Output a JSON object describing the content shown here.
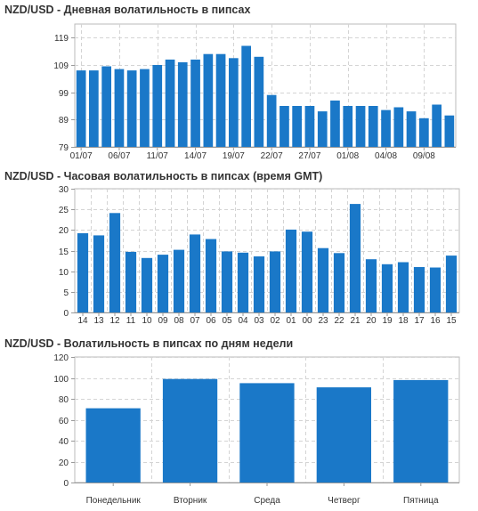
{
  "colors": {
    "bar": "#1a78c8",
    "grid": "#d4d4d4",
    "axis": "#999999",
    "text": "#333333"
  },
  "chart_data": [
    {
      "id": "daily",
      "type": "bar",
      "title": "NZD/USD - Дневная волатильность в пипсах",
      "ylim": [
        79,
        124
      ],
      "yticks": [
        79,
        89,
        99,
        109,
        119
      ],
      "grid": true,
      "x_tick_labels": [
        {
          "index": 0,
          "label": "01/07"
        },
        {
          "index": 3,
          "label": "06/07"
        },
        {
          "index": 6,
          "label": "11/07"
        },
        {
          "index": 9,
          "label": "14/07"
        },
        {
          "index": 12,
          "label": "19/07"
        },
        {
          "index": 15,
          "label": "22/07"
        },
        {
          "index": 18,
          "label": "27/07"
        },
        {
          "index": 21,
          "label": "01/08"
        },
        {
          "index": 24,
          "label": "04/08"
        },
        {
          "index": 27,
          "label": "09/08"
        }
      ],
      "values": [
        107,
        107,
        108.5,
        107.5,
        107,
        107.5,
        109,
        111,
        110,
        111,
        113,
        113,
        111.5,
        116,
        112,
        98,
        94,
        94,
        94,
        92,
        96,
        94,
        94,
        94,
        92.5,
        93.5,
        92,
        89.5,
        94.5,
        90.5
      ]
    },
    {
      "id": "hourly",
      "type": "bar",
      "title": "NZD/USD - Часовая волатильность в пипсах (время GMT)",
      "ylim": [
        0,
        30
      ],
      "yticks": [
        0,
        5,
        10,
        15,
        20,
        25,
        30
      ],
      "grid": true,
      "categories": [
        "14",
        "13",
        "12",
        "11",
        "10",
        "09",
        "08",
        "07",
        "06",
        "05",
        "04",
        "03",
        "02",
        "01",
        "00",
        "23",
        "22",
        "21",
        "20",
        "19",
        "18",
        "17",
        "16",
        "15"
      ],
      "values": [
        19.2,
        18.7,
        24.1,
        14.7,
        13.2,
        14.0,
        15.2,
        18.9,
        17.8,
        14.8,
        14.5,
        13.6,
        14.8,
        20.1,
        19.6,
        15.6,
        14.4,
        26.3,
        12.9,
        11.7,
        12.2,
        11.0,
        10.9,
        13.8
      ]
    },
    {
      "id": "weekday",
      "type": "bar",
      "title": "NZD/USD - Волатильность в пипсах по дням недели",
      "ylim": [
        0,
        120
      ],
      "yticks": [
        0,
        20,
        40,
        60,
        80,
        100,
        120
      ],
      "grid": true,
      "categories": [
        "Понедельник",
        "Вторник",
        "Среда",
        "Четверг",
        "Пятница"
      ],
      "values": [
        71,
        99,
        95,
        91,
        98
      ]
    }
  ]
}
